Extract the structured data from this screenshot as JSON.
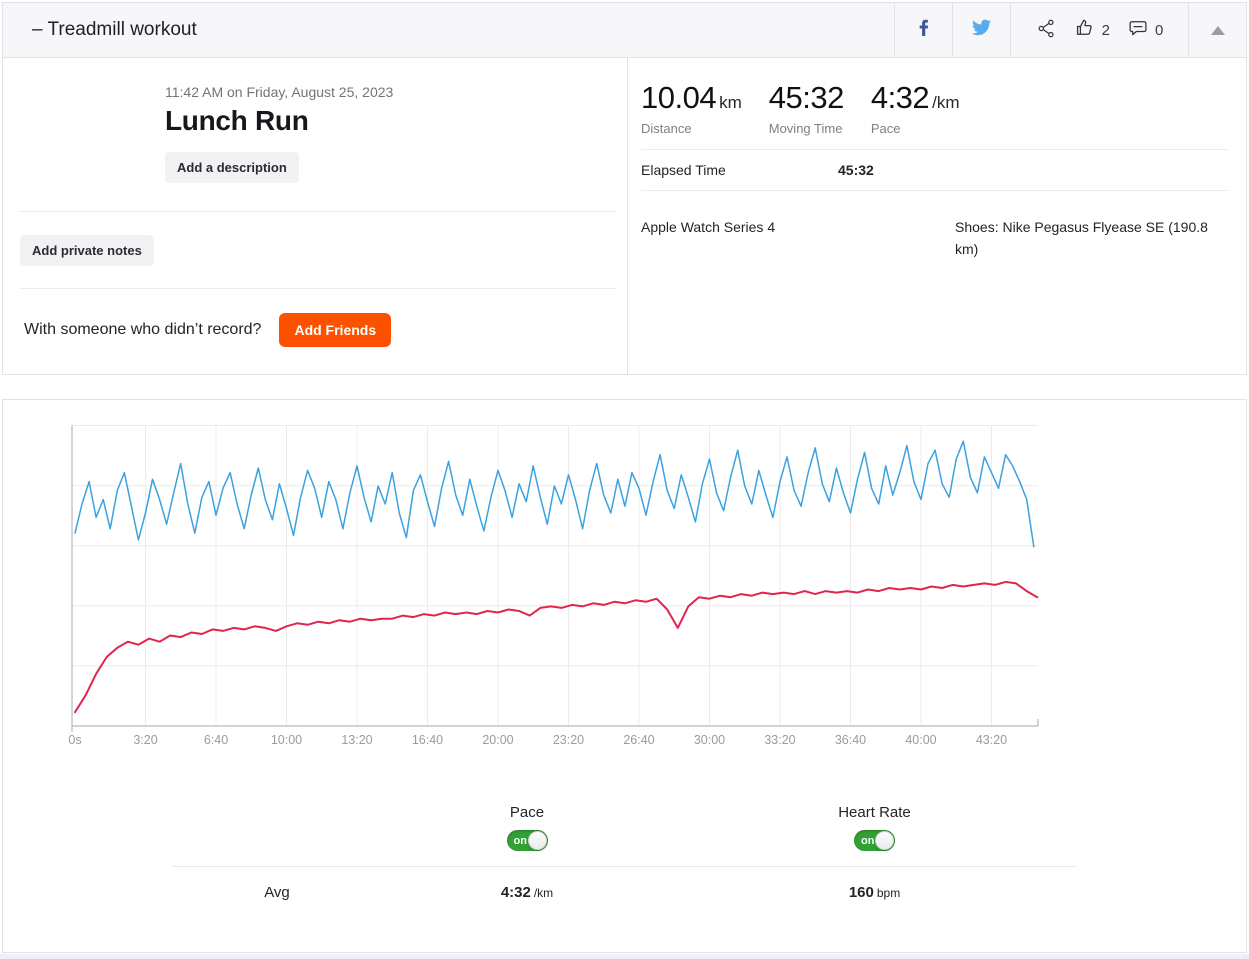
{
  "header": {
    "title": "– Treadmill workout",
    "kudos_count": "2",
    "comment_count": "0"
  },
  "summary": {
    "date": "11:42 AM on Friday, August 25, 2023",
    "title": "Lunch Run",
    "add_description_label": "Add a description",
    "add_private_notes_label": "Add private notes",
    "with_someone_text": "With someone who didn’t record?",
    "add_friends_label": "Add Friends"
  },
  "stats": {
    "primary": [
      {
        "value": "10.04",
        "unit": "km",
        "label": "Distance"
      },
      {
        "value": "45:32",
        "unit": "",
        "label": "Moving Time"
      },
      {
        "value": "4:32",
        "unit": "/km",
        "label": "Pace"
      }
    ],
    "elapsed_label": "Elapsed Time",
    "elapsed_value": "45:32",
    "device": "Apple Watch Series 4",
    "shoes": "Shoes: Nike Pegasus Flyease SE (190.8 km)"
  },
  "controls": {
    "pace_label": "Pace",
    "heart_rate_label": "Heart Rate",
    "toggle_on": "on",
    "avg_label": "Avg",
    "avg_pace": "4:32",
    "avg_pace_unit": "/km",
    "avg_hr": "160",
    "avg_hr_unit": "bpm"
  },
  "colors": {
    "accent_orange": "#fc5200",
    "pace_blue": "#3aa2e0",
    "heart_rate_red": "#e0254f",
    "toggle_green": "#33a033",
    "facebook_blue": "#3b5998",
    "twitter_blue": "#55acee"
  },
  "chart_data": {
    "type": "line",
    "title": "",
    "xlabel": "",
    "ylabel": "",
    "x_unit": "seconds",
    "xlim": [
      0,
      2732
    ],
    "grid": true,
    "legend_position": "below-as-toggles",
    "x_ticks": [
      {
        "t": 0,
        "label": "0s"
      },
      {
        "t": 200,
        "label": "3:20"
      },
      {
        "t": 400,
        "label": "6:40"
      },
      {
        "t": 600,
        "label": "10:00"
      },
      {
        "t": 800,
        "label": "13:20"
      },
      {
        "t": 1000,
        "label": "16:40"
      },
      {
        "t": 1200,
        "label": "20:00"
      },
      {
        "t": 1400,
        "label": "23:20"
      },
      {
        "t": 1600,
        "label": "26:40"
      },
      {
        "t": 1800,
        "label": "30:00"
      },
      {
        "t": 2000,
        "label": "33:20"
      },
      {
        "t": 2200,
        "label": "36:40"
      },
      {
        "t": 2400,
        "label": "40:00"
      },
      {
        "t": 2600,
        "label": "43:20"
      }
    ],
    "series": [
      {
        "name": "Pace",
        "unit": "sec/km",
        "average": 272,
        "color": "#3aa2e0",
        "t_step": 20,
        "render_ylim": [
          371,
          237
        ],
        "values": [
          285,
          272,
          262,
          278,
          270,
          283,
          266,
          258,
          273,
          288,
          276,
          261,
          270,
          281,
          267,
          254,
          272,
          285,
          269,
          262,
          277,
          265,
          258,
          272,
          283,
          268,
          256,
          270,
          279,
          263,
          274,
          286,
          269,
          257,
          265,
          278,
          262,
          270,
          283,
          267,
          255,
          269,
          280,
          264,
          272,
          258,
          276,
          287,
          266,
          259,
          271,
          282,
          265,
          253,
          268,
          277,
          261,
          273,
          284,
          269,
          257,
          266,
          278,
          263,
          271,
          255,
          269,
          281,
          264,
          272,
          259,
          270,
          283,
          266,
          254,
          268,
          276,
          261,
          273,
          258,
          265,
          277,
          262,
          250,
          266,
          274,
          259,
          269,
          280,
          263,
          252,
          267,
          275,
          260,
          248,
          264,
          272,
          257,
          268,
          278,
          262,
          251,
          266,
          273,
          258,
          247,
          263,
          271,
          256,
          267,
          276,
          261,
          249,
          265,
          272,
          255,
          268,
          258,
          246,
          262,
          270,
          254,
          248,
          263,
          269,
          252,
          244,
          260,
          267,
          251,
          258,
          265,
          250,
          255,
          262,
          270,
          291
        ]
      },
      {
        "name": "Heart Rate",
        "unit": "bpm",
        "average": 160,
        "color": "#e0254f",
        "t_step": 30,
        "render_ylim": [
          88,
          284
        ],
        "values": [
          97,
          108,
          122,
          133,
          139,
          143,
          141,
          145,
          143,
          147,
          146,
          149,
          148,
          151,
          150,
          152,
          151,
          153,
          152,
          150,
          153,
          155,
          154,
          156,
          155,
          157,
          156,
          158,
          157,
          158,
          158,
          160,
          159,
          161,
          160,
          162,
          161,
          162,
          161,
          163,
          162,
          164,
          163,
          160,
          165,
          166,
          165,
          167,
          166,
          168,
          167,
          169,
          168,
          170,
          169,
          171,
          164,
          152,
          166,
          172,
          171,
          173,
          172,
          174,
          173,
          175,
          174,
          175,
          174,
          176,
          174,
          176,
          175,
          176,
          175,
          177,
          176,
          178,
          177,
          178,
          177,
          179,
          178,
          180,
          179,
          180,
          181,
          180,
          182,
          181,
          176,
          172
        ]
      }
    ]
  }
}
